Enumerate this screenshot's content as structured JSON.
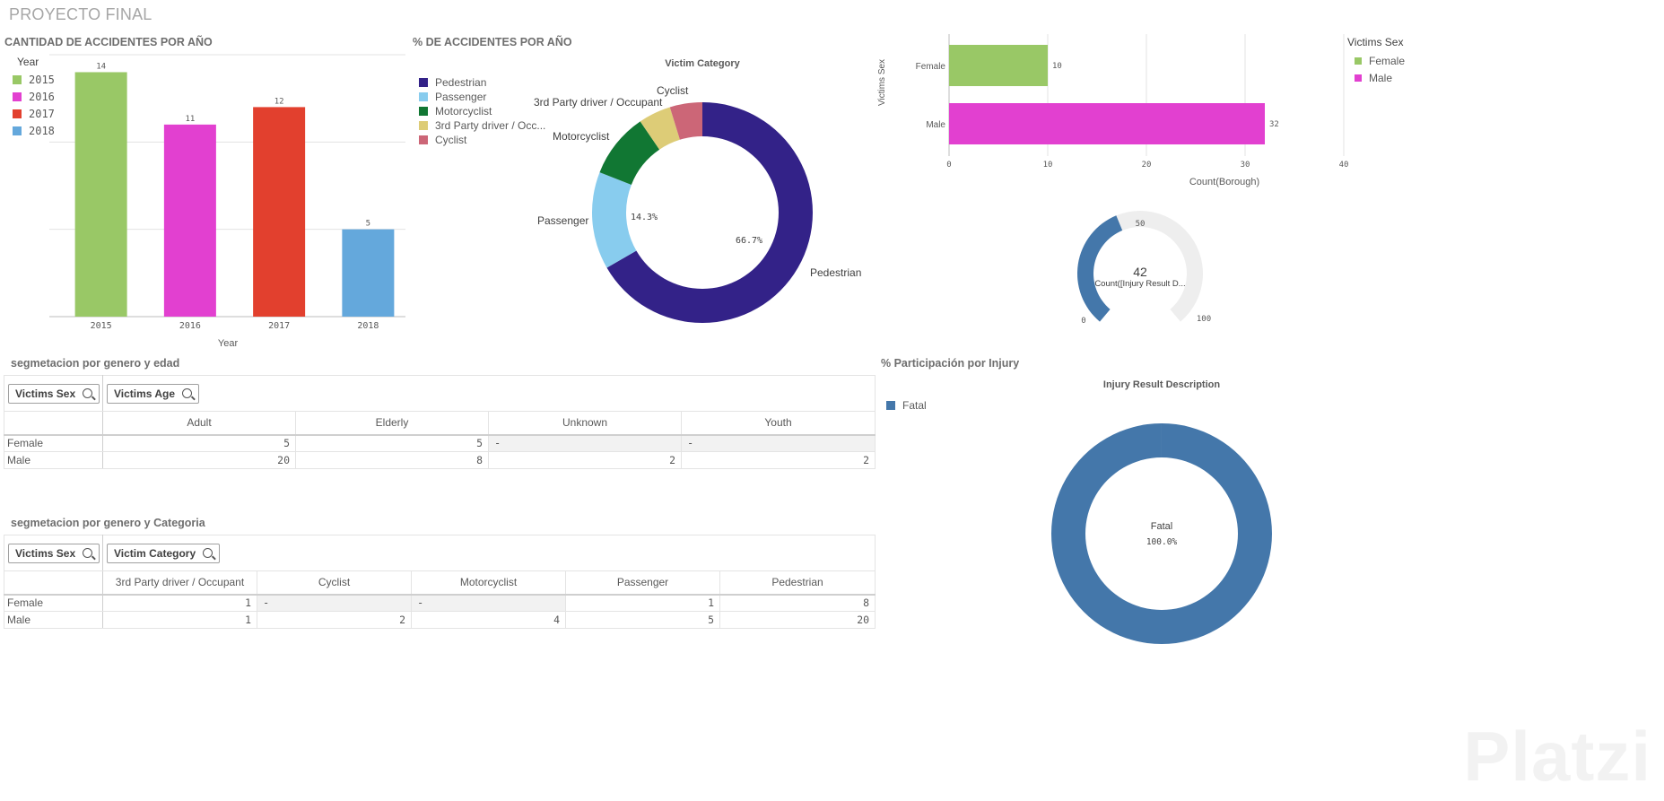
{
  "app": {
    "title": "PROYECTO FINAL"
  },
  "panels": {
    "by_year": {
      "title": "CANTIDAD DE ACCIDENTES POR AÑO",
      "legend_title": "Year",
      "legend": [
        "2015",
        "2016",
        "2017",
        "2018"
      ],
      "xlabel": "Year"
    },
    "pct_year": {
      "title": "% DE ACCIDENTES POR AÑO",
      "chart_title": "Victim Category",
      "legend": [
        "Pedestrian",
        "Passenger",
        "Motorcyclist",
        "3rd Party driver / Occ...",
        "Cyclist"
      ],
      "outer_labels": [
        "Pedestrian",
        "Passenger",
        "Motorcyclist",
        "3rd Party driver / Occupant",
        "Cyclist"
      ],
      "inner_labels": [
        "66.7%",
        "14.3%"
      ]
    },
    "sex_bar": {
      "ylabel": "Victims Sex",
      "xlabel": "Count(Borough)",
      "legend_title": "Victims Sex",
      "legend": [
        "Female",
        "Male"
      ]
    },
    "gauge": {
      "value_text": "42",
      "label": "Count([Injury Result D...",
      "min_label": "0",
      "mid_label": "50",
      "max_label": "100"
    },
    "table_age": {
      "title": "segmetacion por genero y edad",
      "row_dim": "Victims Sex",
      "col_dim": "Victims Age",
      "columns": [
        "Adult",
        "Elderly",
        "Unknown",
        "Youth"
      ],
      "rows": [
        {
          "label": "Female",
          "cells": [
            "5",
            "5",
            "-",
            "-"
          ]
        },
        {
          "label": "Male",
          "cells": [
            "20",
            "8",
            "2",
            "2"
          ]
        }
      ]
    },
    "table_cat": {
      "title": "segmetacion por genero y Categoria",
      "row_dim": "Victims Sex",
      "col_dim": "Victim Category",
      "columns": [
        "3rd Party driver / Occupant",
        "Cyclist",
        "Motorcyclist",
        "Passenger",
        "Pedestrian"
      ],
      "rows": [
        {
          "label": "Female",
          "cells": [
            "1",
            "-",
            "-",
            "1",
            "8"
          ]
        },
        {
          "label": "Male",
          "cells": [
            "1",
            "2",
            "4",
            "5",
            "20"
          ]
        }
      ]
    },
    "injury": {
      "title": "% Participación por Injury",
      "chart_title": "Injury Result Description",
      "legend": [
        "Fatal"
      ],
      "center_label": "Fatal",
      "center_value": "100.0%"
    }
  },
  "watermark": "Platzi",
  "colors": {
    "y2015": "#99c866",
    "y2016": "#e240d0",
    "y2017": "#e2402e",
    "y2018": "#64a8dc",
    "pedestrian": "#332288",
    "passenger": "#88ccee",
    "motorcyclist": "#117733",
    "third_party": "#ddcc77",
    "cyclist": "#cc6677",
    "female": "#99c866",
    "male": "#e240d0",
    "gauge_fill": "#4477aa",
    "gauge_track": "#eeeeee",
    "fatal": "#4477aa"
  },
  "chart_data": [
    {
      "type": "bar",
      "title": "CANTIDAD DE ACCIDENTES POR AÑO",
      "categories": [
        "2015",
        "2016",
        "2017",
        "2018"
      ],
      "values": [
        14,
        11,
        12,
        5
      ],
      "data_labels": [
        "14",
        "11",
        "12",
        "5"
      ],
      "xlabel": "Year",
      "ylim": [
        0,
        15
      ],
      "grid": true,
      "legend": "top-left"
    },
    {
      "type": "pie",
      "title": "Victim Category",
      "categories": [
        "Pedestrian",
        "Passenger",
        "Motorcyclist",
        "3rd Party driver / Occupant",
        "Cyclist"
      ],
      "values": [
        28,
        6,
        4,
        2,
        2
      ],
      "donut": true,
      "legend": "left"
    },
    {
      "type": "bar",
      "orientation": "horizontal",
      "categories": [
        "Female",
        "Male"
      ],
      "values": [
        10,
        32
      ],
      "data_labels": [
        "10",
        "32"
      ],
      "xlabel": "Count(Borough)",
      "ylabel": "Victims Sex",
      "xticks": [
        "0",
        "10",
        "20",
        "30",
        "40"
      ],
      "xlim": [
        0,
        40
      ],
      "grid": true,
      "legend": "right"
    },
    {
      "type": "gauge",
      "value": 42,
      "range": [
        0,
        100
      ],
      "mid": 50
    },
    {
      "type": "pie",
      "title": "Injury Result Description",
      "categories": [
        "Fatal"
      ],
      "values": [
        1
      ],
      "donut": true,
      "legend": "left"
    }
  ]
}
